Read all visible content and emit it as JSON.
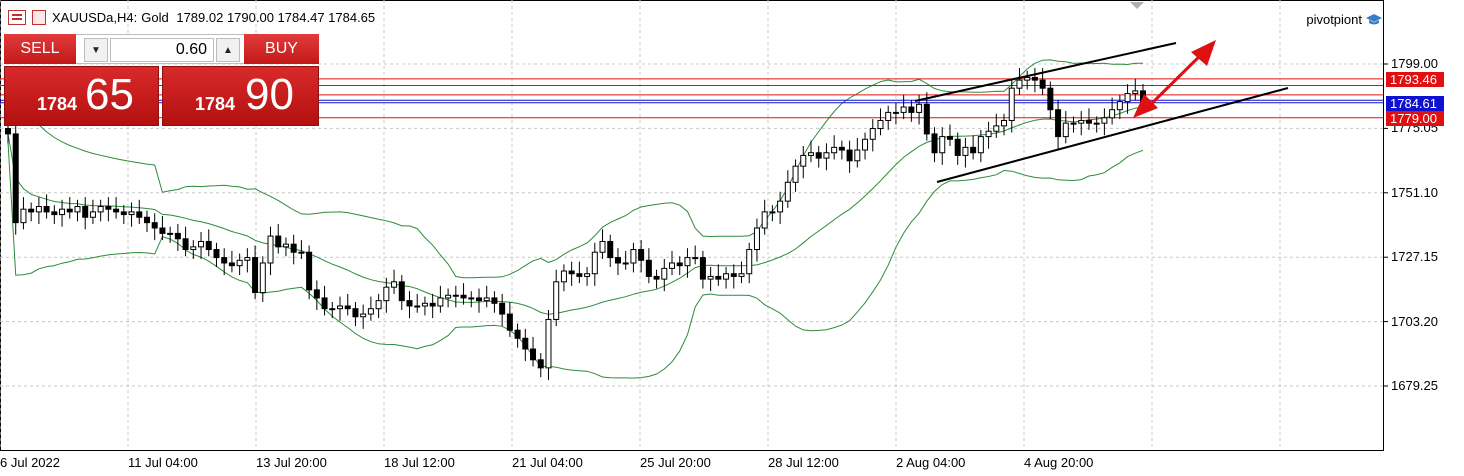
{
  "header": {
    "symbol": "XAUUSDa,H4:",
    "description": "Gold",
    "ohlc": "1789.02 1790.00 1784.47 1784.65"
  },
  "brand": {
    "name": "pivotpiont",
    "icon": "graduation-cap-icon"
  },
  "trade_panel": {
    "sell_label": "SELL",
    "buy_label": "BUY",
    "lot": "0.60",
    "sell_price_small": "1784",
    "sell_price_big": "65",
    "buy_price_small": "1784",
    "buy_price_big": "90",
    "down_glyph": "▼",
    "up_glyph": "▲"
  },
  "price_labels": [
    {
      "value": "1793.46",
      "color": "#e01010"
    },
    {
      "value": "1784.61",
      "color": "#1010d0"
    },
    {
      "value": "1779.00",
      "color": "#e01010"
    }
  ],
  "chart_data": {
    "type": "candlestick",
    "symbol": "XAUUSDa",
    "timeframe": "H4",
    "y_ticks": [
      1799.0,
      1775.05,
      1751.1,
      1727.15,
      1703.2,
      1679.25
    ],
    "y_tick_labels": [
      "1799.00",
      "1775.05",
      "1751.10",
      "1727.15",
      "1703.20",
      "1679.25"
    ],
    "x_tick_labels": [
      "6 Jul 2022",
      "11 Jul 04:00",
      "13 Jul 20:00",
      "18 Jul 12:00",
      "21 Jul 04:00",
      "25 Jul 20:00",
      "28 Jul 12:00",
      "2 Aug 04:00",
      "4 Aug 20:00"
    ],
    "ylim": [
      1655,
      1818
    ],
    "grid": true,
    "horizontal_lines": [
      {
        "value": 1793.46,
        "color": "#e01010"
      },
      {
        "value": 1791.0,
        "color": "#e01010"
      },
      {
        "value": 1787.5,
        "color": "#e01010"
      },
      {
        "value": 1785.5,
        "color": "#1010d0"
      },
      {
        "value": 1784.61,
        "color": "#1010d0"
      },
      {
        "value": 1779.0,
        "color": "#e01010"
      }
    ],
    "close_series": [
      1773,
      1740,
      1745,
      1744,
      1746,
      1744,
      1743,
      1745,
      1744,
      1746,
      1742,
      1744,
      1746,
      1745,
      1744,
      1743,
      1744,
      1742,
      1740,
      1738,
      1736,
      1736,
      1734,
      1730,
      1731,
      1733,
      1730,
      1727,
      1725,
      1724,
      1726,
      1727,
      1714,
      1725,
      1735,
      1731,
      1732,
      1729,
      1729,
      1715,
      1712,
      1708,
      1708,
      1709,
      1708,
      1705,
      1706,
      1708,
      1711,
      1716,
      1718,
      1711,
      1709,
      1709,
      1710,
      1709,
      1712,
      1713,
      1713,
      1712,
      1712,
      1711,
      1712,
      1710,
      1706,
      1700,
      1697,
      1693,
      1689,
      1686,
      1704,
      1718,
      1722,
      1721,
      1720,
      1721,
      1729,
      1733,
      1727,
      1725,
      1725,
      1730,
      1726,
      1720,
      1719,
      1723,
      1725,
      1724,
      1727,
      1727,
      1719,
      1720,
      1719,
      1721,
      1720,
      1721,
      1730,
      1738,
      1744,
      1744,
      1748,
      1755,
      1761,
      1765,
      1766,
      1764,
      1766,
      1768,
      1767,
      1763,
      1767,
      1771,
      1775,
      1778,
      1781,
      1781,
      1783,
      1781,
      1784,
      1773,
      1766,
      1772,
      1771,
      1765,
      1768,
      1766,
      1772,
      1774,
      1776,
      1778,
      1790,
      1793,
      1794,
      1793,
      1790,
      1782,
      1772,
      1777,
      1777,
      1778,
      1777,
      1777,
      1779,
      1782,
      1785,
      1788,
      1789,
      1784.65
    ],
    "bollinger": {
      "period": 20,
      "colors": "#2e8b3a"
    },
    "channel_lines": [
      {
        "name": "upper trendline",
        "from": {
          "x": "2 Aug 04:00",
          "y": 1787
        },
        "to": {
          "x": "6 Aug",
          "y": 1807
        }
      },
      {
        "name": "lower trendline",
        "from": {
          "x": "2 Aug 04:00",
          "y": 1757
        },
        "to": {
          "x": "6 Aug",
          "y": 1788
        }
      }
    ],
    "annotations": [
      {
        "type": "double-arrow",
        "color": "#e01010"
      }
    ]
  },
  "colors": {
    "bull": "#ffffff",
    "bear": "#000000",
    "grid": "#c8c8c8",
    "bands": "#2e8b3a",
    "trend": "#000000",
    "arrow": "#e01010"
  }
}
